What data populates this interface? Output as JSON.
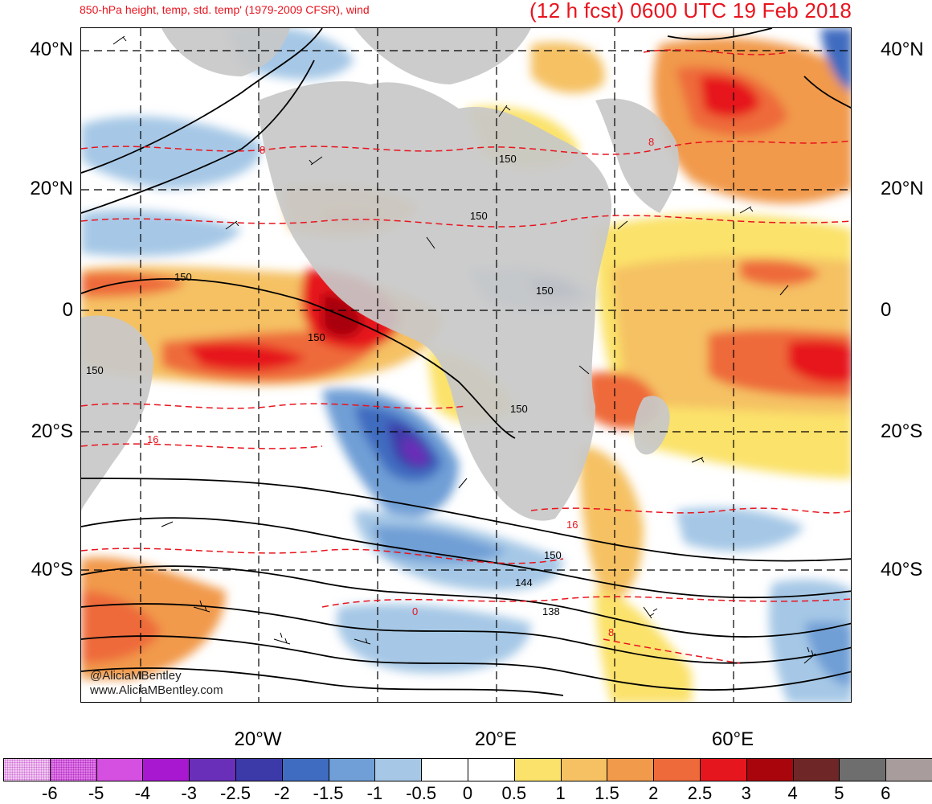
{
  "header": {
    "subtitle": "850-hPa height, temp, std. temp' (1979-2009 CFSR), wind",
    "forecast": "(12 h fcst) 0600 UTC 19 Feb 2018"
  },
  "axes": {
    "lat_labels": [
      "40°N",
      "20°N",
      "0",
      "20°S",
      "40°S"
    ],
    "lon_labels": [
      "20°W",
      "20°E",
      "60°E"
    ]
  },
  "credits": {
    "twitter": "@AliciaMBentley",
    "website": "www.AliciaMBentley.com"
  },
  "contour_labels": {
    "height": [
      "150",
      "150",
      "150",
      "150",
      "150",
      "150",
      "150",
      "150",
      "144",
      "138"
    ],
    "temperature": [
      "8",
      "8",
      "16",
      "16",
      "0",
      "8"
    ]
  },
  "colorbar": {
    "labels": [
      "-6",
      "-5",
      "-4",
      "-3",
      "-2.5",
      "-2",
      "-1.5",
      "-1",
      "-0.5",
      "0",
      "0.5",
      "1",
      "1.5",
      "2",
      "2.5",
      "3",
      "4",
      "5",
      "6"
    ],
    "colors": [
      "#f0c8f0",
      "#e07ae8",
      "#d54fe0",
      "#a818d0",
      "#6a2fb8",
      "#3c3aa8",
      "#3f6cc0",
      "#6f9fd6",
      "#a6c8e6",
      "#ffffff",
      "#ffffff",
      "#fbe26a",
      "#f5c163",
      "#f19a4c",
      "#ee6a3a",
      "#e6161e",
      "#a8060c",
      "#6e2626",
      "#6e6e6e",
      "#a89c9c"
    ]
  },
  "map": {
    "colors": {
      "land": "#c8c8c8",
      "ocean_neutral": "#ffffff",
      "grid": "#000000",
      "height_contour": "#000000",
      "temp_contour": "#e8141e"
    }
  }
}
